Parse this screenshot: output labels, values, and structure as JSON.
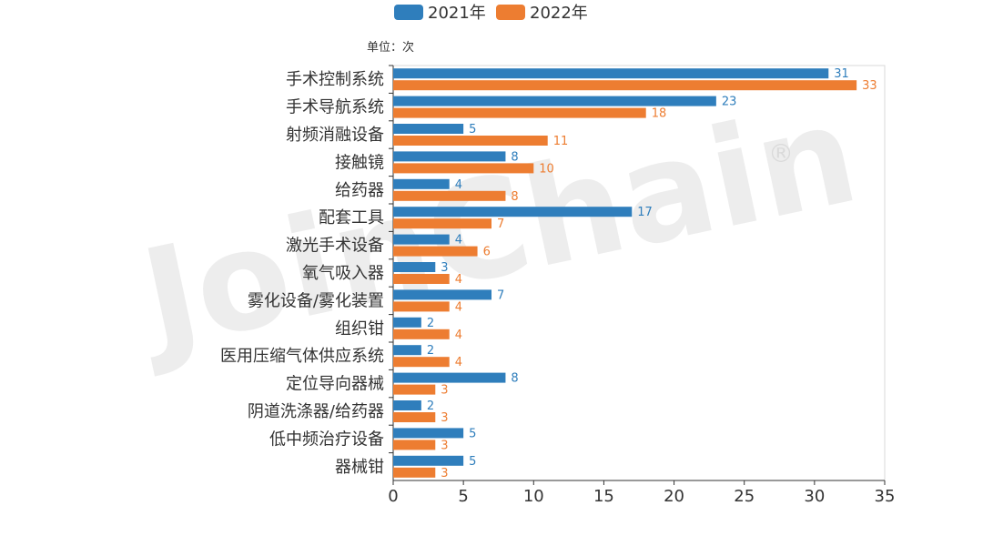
{
  "watermark": "JoinChain",
  "watermark_mark": "®",
  "colors": {
    "series_2021": "#2f7ebc",
    "series_2022": "#ed7d31"
  },
  "chart_data": {
    "type": "bar",
    "orientation": "horizontal",
    "unit_label": "单位：次",
    "categories": [
      "手术控制系统",
      "手术导航系统",
      "射频消融设备",
      "接触镜",
      "给药器",
      "配套工具",
      "激光手术设备",
      "氧气吸入器",
      "雾化设备/雾化装置",
      "组织钳",
      "医用压缩气体供应系统",
      "定位导向器械",
      "阴道洗涤器/给药器",
      "低中频治疗设备",
      "器械钳"
    ],
    "series": [
      {
        "name": "2021年",
        "values": [
          31,
          23,
          5,
          8,
          4,
          17,
          4,
          3,
          7,
          2,
          2,
          8,
          2,
          5,
          5
        ]
      },
      {
        "name": "2022年",
        "values": [
          33,
          18,
          11,
          10,
          8,
          7,
          6,
          4,
          4,
          4,
          4,
          3,
          3,
          3,
          3
        ]
      }
    ],
    "xlim": [
      0,
      35
    ],
    "xticks": [
      0,
      5,
      10,
      15,
      20,
      25,
      30,
      35
    ],
    "legend_position": "top-center",
    "grid": false
  }
}
